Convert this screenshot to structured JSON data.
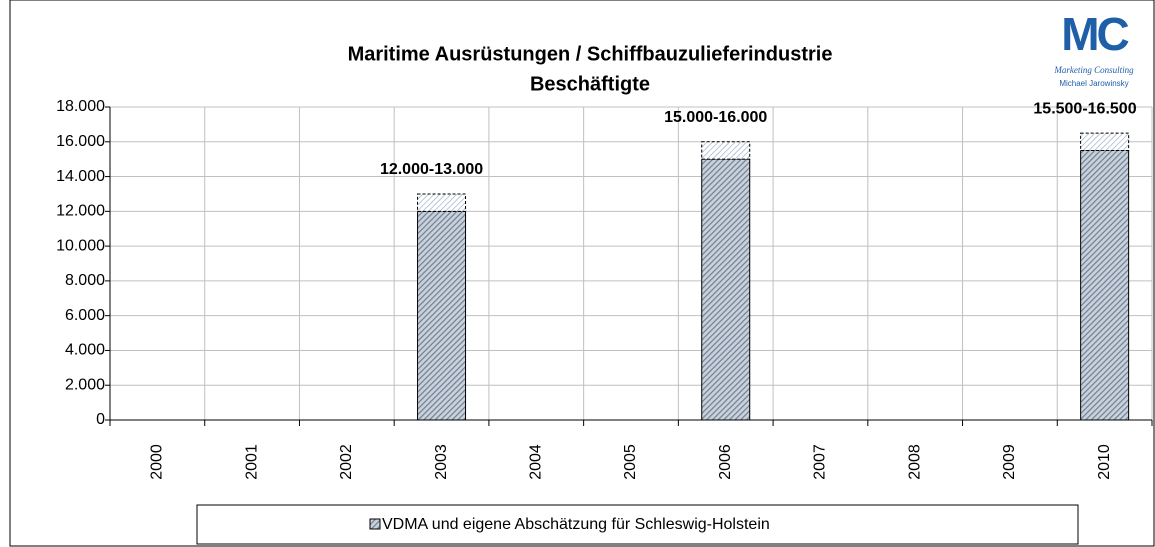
{
  "chart_data": {
    "type": "bar",
    "stacked": true,
    "title": [
      "Maritime Ausrüstungen / Schiffbauzulieferindustrie",
      "Beschäftigte"
    ],
    "categories": [
      "2000",
      "2001",
      "2002",
      "2003",
      "2004",
      "2005",
      "2006",
      "2007",
      "2008",
      "2009",
      "2010"
    ],
    "series": [
      {
        "name": "VDMA und eigene Abschätzung für Schleswig-Holstein",
        "color": "#6f7f90",
        "values": [
          null,
          null,
          null,
          12000,
          null,
          null,
          15000,
          null,
          null,
          null,
          15500
        ]
      },
      {
        "color": "#8fa4c0",
        "values": [
          null,
          null,
          null,
          1000,
          null,
          null,
          1000,
          null,
          null,
          null,
          1000
        ]
      }
    ],
    "annotations": [
      {
        "category": "2003",
        "text": "12.000-13.000"
      },
      {
        "category": "2006",
        "text": "15.000-16.000"
      },
      {
        "category": "2010",
        "text": "15.500-16.500"
      }
    ],
    "ylim": [
      0,
      18000
    ],
    "yticks": [
      0,
      {
        "value": 2000,
        "label": "2.000"
      },
      {
        "value": 4000,
        "label": "4.000"
      },
      {
        "value": 6000,
        "label": "6.000"
      },
      {
        "value": 8000,
        "label": "8.000"
      },
      {
        "value": 10000,
        "label": "10.000"
      },
      {
        "value": 12000,
        "label": "12.000"
      },
      {
        "value": 14000,
        "label": "14.000"
      },
      {
        "value": 16000,
        "label": "16.000"
      },
      {
        "value": 18000,
        "label": "18.000"
      }
    ],
    "grid": true,
    "legend": "bottom",
    "logo": {
      "mark": "MC",
      "line1": "Marketing Consulting",
      "line2": "Michael Jarowinsky"
    }
  }
}
